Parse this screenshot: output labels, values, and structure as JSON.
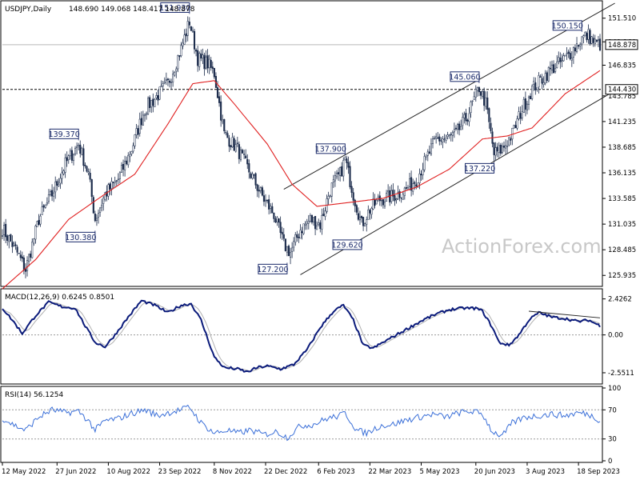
{
  "chart_data": {
    "type": "candlestick",
    "symbol_title": "USDJPY,Daily",
    "ohlc_readout": "148.690 149.068 148.417 148.878",
    "watermark": "ActionForex.com",
    "price_panel": {
      "ylim": [
        125.0,
        153.0
      ],
      "tick_labels": [
        "151.510",
        "149.160",
        "146.835",
        "143.785",
        "141.235",
        "138.685",
        "136.135",
        "133.585",
        "131.035",
        "128.485",
        "125.935"
      ],
      "tick_values": [
        151.51,
        149.16,
        146.835,
        143.785,
        141.235,
        138.685,
        136.135,
        133.585,
        131.035,
        128.485,
        125.935
      ],
      "current_price": {
        "label": "148.878",
        "value": 148.878
      },
      "support_level": {
        "label": "144.430",
        "value": 144.43
      },
      "annotations": [
        {
          "label": "151.930",
          "value": 151.93,
          "date_index": 113
        },
        {
          "label": "150.150",
          "value": 150.15,
          "date_index": 350
        },
        {
          "label": "145.060",
          "value": 145.06,
          "date_index": 288
        },
        {
          "label": "139.370",
          "value": 139.37,
          "date_index": 46
        },
        {
          "label": "137.900",
          "value": 137.9,
          "date_index": 207
        },
        {
          "label": "137.220",
          "value": 137.22,
          "date_index": 297
        },
        {
          "label": "130.380",
          "value": 130.38,
          "date_index": 56
        },
        {
          "label": "129.620",
          "value": 129.62,
          "date_index": 217
        },
        {
          "label": "127.200",
          "value": 127.2,
          "date_index": 172
        }
      ],
      "channel": {
        "upper": [
          [
            170,
            134.5
          ],
          [
            370,
            153.0
          ]
        ],
        "lower": [
          [
            180,
            126.0
          ],
          [
            370,
            144.3
          ]
        ]
      },
      "key_points": [
        [
          0,
          130.6
        ],
        [
          8,
          128.5
        ],
        [
          14,
          126.5
        ],
        [
          22,
          131.5
        ],
        [
          30,
          134.0
        ],
        [
          38,
          137.0
        ],
        [
          46,
          139.0
        ],
        [
          52,
          136.0
        ],
        [
          56,
          131.5
        ],
        [
          62,
          134.0
        ],
        [
          70,
          135.5
        ],
        [
          78,
          138.5
        ],
        [
          86,
          142.5
        ],
        [
          92,
          143.5
        ],
        [
          100,
          145.0
        ],
        [
          108,
          148.5
        ],
        [
          113,
          151.2
        ],
        [
          118,
          147.5
        ],
        [
          124,
          147.0
        ],
        [
          128,
          146.0
        ],
        [
          134,
          140.0
        ],
        [
          142,
          138.5
        ],
        [
          150,
          136.0
        ],
        [
          158,
          133.5
        ],
        [
          164,
          132.0
        ],
        [
          170,
          129.0
        ],
        [
          174,
          128.2
        ],
        [
          180,
          130.5
        ],
        [
          186,
          131.5
        ],
        [
          192,
          131.0
        ],
        [
          198,
          134.5
        ],
        [
          204,
          136.0
        ],
        [
          207,
          137.5
        ],
        [
          212,
          134.0
        ],
        [
          217,
          131.0
        ],
        [
          222,
          132.5
        ],
        [
          228,
          133.5
        ],
        [
          236,
          133.8
        ],
        [
          244,
          134.5
        ],
        [
          250,
          135.5
        ],
        [
          256,
          137.5
        ],
        [
          262,
          139.5
        ],
        [
          268,
          139.5
        ],
        [
          274,
          140.0
        ],
        [
          280,
          141.5
        ],
        [
          284,
          143.0
        ],
        [
          288,
          144.6
        ],
        [
          292,
          143.0
        ],
        [
          297,
          138.0
        ],
        [
          302,
          138.5
        ],
        [
          308,
          140.0
        ],
        [
          314,
          142.5
        ],
        [
          320,
          144.5
        ],
        [
          326,
          145.5
        ],
        [
          332,
          146.5
        ],
        [
          338,
          147.2
        ],
        [
          344,
          148.2
        ],
        [
          350,
          149.5
        ],
        [
          354,
          149.8
        ],
        [
          358,
          149.0
        ],
        [
          361,
          148.9
        ]
      ],
      "moving_average": [
        [
          0,
          124.6
        ],
        [
          20,
          127.5
        ],
        [
          40,
          131.5
        ],
        [
          60,
          133.8
        ],
        [
          80,
          136.0
        ],
        [
          100,
          141.0
        ],
        [
          115,
          145.0
        ],
        [
          128,
          145.3
        ],
        [
          140,
          143.0
        ],
        [
          160,
          139.0
        ],
        [
          175,
          135.0
        ],
        [
          190,
          132.8
        ],
        [
          210,
          133.2
        ],
        [
          230,
          133.6
        ],
        [
          250,
          134.7
        ],
        [
          270,
          136.5
        ],
        [
          290,
          139.5
        ],
        [
          305,
          139.8
        ],
        [
          320,
          140.6
        ],
        [
          340,
          144.0
        ],
        [
          361,
          146.3
        ]
      ],
      "noise_seed": 7,
      "noise_amplitude": 0.9
    },
    "macd_panel": {
      "title": "MACD(12,26,9) 0.6245 0.8501",
      "ylim": [
        -3.2,
        3.0
      ],
      "tick_labels": [
        "2.4262",
        "0.00",
        "-2.5511"
      ],
      "tick_values": [
        2.4262,
        0.0,
        -2.5511
      ],
      "zero_line": 0.0,
      "key_points": [
        [
          0,
          1.8
        ],
        [
          6,
          1.0
        ],
        [
          12,
          0.1
        ],
        [
          20,
          1.3
        ],
        [
          28,
          2.2
        ],
        [
          36,
          1.9
        ],
        [
          44,
          1.8
        ],
        [
          50,
          0.6
        ],
        [
          56,
          -0.5
        ],
        [
          62,
          -0.8
        ],
        [
          68,
          0.0
        ],
        [
          76,
          1.2
        ],
        [
          84,
          2.3
        ],
        [
          92,
          2.0
        ],
        [
          100,
          1.5
        ],
        [
          108,
          2.0
        ],
        [
          114,
          2.1
        ],
        [
          120,
          1.0
        ],
        [
          128,
          -1.5
        ],
        [
          134,
          -2.2
        ],
        [
          142,
          -2.3
        ],
        [
          148,
          -2.5
        ],
        [
          154,
          -2.2
        ],
        [
          160,
          -2.1
        ],
        [
          168,
          -2.3
        ],
        [
          176,
          -2.0
        ],
        [
          184,
          -1.0
        ],
        [
          192,
          0.5
        ],
        [
          200,
          1.6
        ],
        [
          206,
          2.0
        ],
        [
          212,
          1.0
        ],
        [
          218,
          -0.7
        ],
        [
          224,
          -0.9
        ],
        [
          230,
          -0.5
        ],
        [
          238,
          0.0
        ],
        [
          246,
          0.5
        ],
        [
          254,
          1.0
        ],
        [
          262,
          1.4
        ],
        [
          270,
          1.7
        ],
        [
          278,
          1.8
        ],
        [
          286,
          1.8
        ],
        [
          290,
          1.6
        ],
        [
          296,
          0.5
        ],
        [
          300,
          -0.5
        ],
        [
          306,
          -0.7
        ],
        [
          312,
          0.0
        ],
        [
          318,
          1.0
        ],
        [
          324,
          1.5
        ],
        [
          332,
          1.2
        ],
        [
          340,
          1.1
        ],
        [
          348,
          0.9
        ],
        [
          354,
          1.0
        ],
        [
          361,
          0.62
        ]
      ],
      "signal_lag": 5,
      "trendline": [
        [
          318,
          1.6
        ],
        [
          361,
          1.15
        ]
      ]
    },
    "rsi_panel": {
      "title": "RSI(14) 56.1254",
      "ylim": [
        0,
        100
      ],
      "tick_labels": [
        "100",
        "70",
        "30",
        "0"
      ],
      "tick_values": [
        100,
        70,
        30,
        0
      ],
      "levels": [
        70,
        30
      ],
      "key_points": [
        [
          0,
          58
        ],
        [
          8,
          48
        ],
        [
          14,
          42
        ],
        [
          22,
          60
        ],
        [
          30,
          70
        ],
        [
          38,
          66
        ],
        [
          46,
          68
        ],
        [
          52,
          55
        ],
        [
          56,
          42
        ],
        [
          62,
          55
        ],
        [
          70,
          58
        ],
        [
          78,
          65
        ],
        [
          86,
          70
        ],
        [
          94,
          62
        ],
        [
          100,
          66
        ],
        [
          108,
          70
        ],
        [
          113,
          74
        ],
        [
          120,
          52
        ],
        [
          128,
          38
        ],
        [
          136,
          42
        ],
        [
          142,
          38
        ],
        [
          150,
          42
        ],
        [
          158,
          36
        ],
        [
          166,
          40
        ],
        [
          172,
          32
        ],
        [
          180,
          48
        ],
        [
          188,
          50
        ],
        [
          196,
          58
        ],
        [
          204,
          62
        ],
        [
          207,
          66
        ],
        [
          214,
          42
        ],
        [
          220,
          38
        ],
        [
          228,
          48
        ],
        [
          236,
          50
        ],
        [
          244,
          56
        ],
        [
          252,
          60
        ],
        [
          260,
          64
        ],
        [
          268,
          60
        ],
        [
          276,
          66
        ],
        [
          284,
          68
        ],
        [
          290,
          64
        ],
        [
          296,
          40
        ],
        [
          302,
          34
        ],
        [
          308,
          52
        ],
        [
          316,
          60
        ],
        [
          324,
          62
        ],
        [
          332,
          64
        ],
        [
          340,
          62
        ],
        [
          348,
          66
        ],
        [
          354,
          64
        ],
        [
          361,
          56
        ]
      ]
    },
    "x_axis": {
      "total_points": 362,
      "tick_labels": [
        "12 May 2022",
        "27 Jun 2022",
        "10 Aug 2022",
        "23 Sep 2022",
        "8 Nov 2022",
        "22 Dec 2022",
        "6 Feb 2023",
        "22 Mar 2023",
        "5 May 2023",
        "20 Jun 2023",
        "3 Aug 2023",
        "18 Sep 2023"
      ],
      "tick_indices": [
        0,
        33,
        64,
        95,
        128,
        159,
        191,
        222,
        253,
        286,
        317,
        348
      ]
    },
    "colors": {
      "candle": "#1a2a4a",
      "moving_average": "#e02020",
      "macd": "#0a1a7a",
      "signal": "#b0b0b0",
      "rsi": "#3a6fd8",
      "annotation_border": "#1a2a6a",
      "annotation_text": "#1a2a6a",
      "watermark": "#c8c8c8",
      "grid": "#999999"
    }
  }
}
